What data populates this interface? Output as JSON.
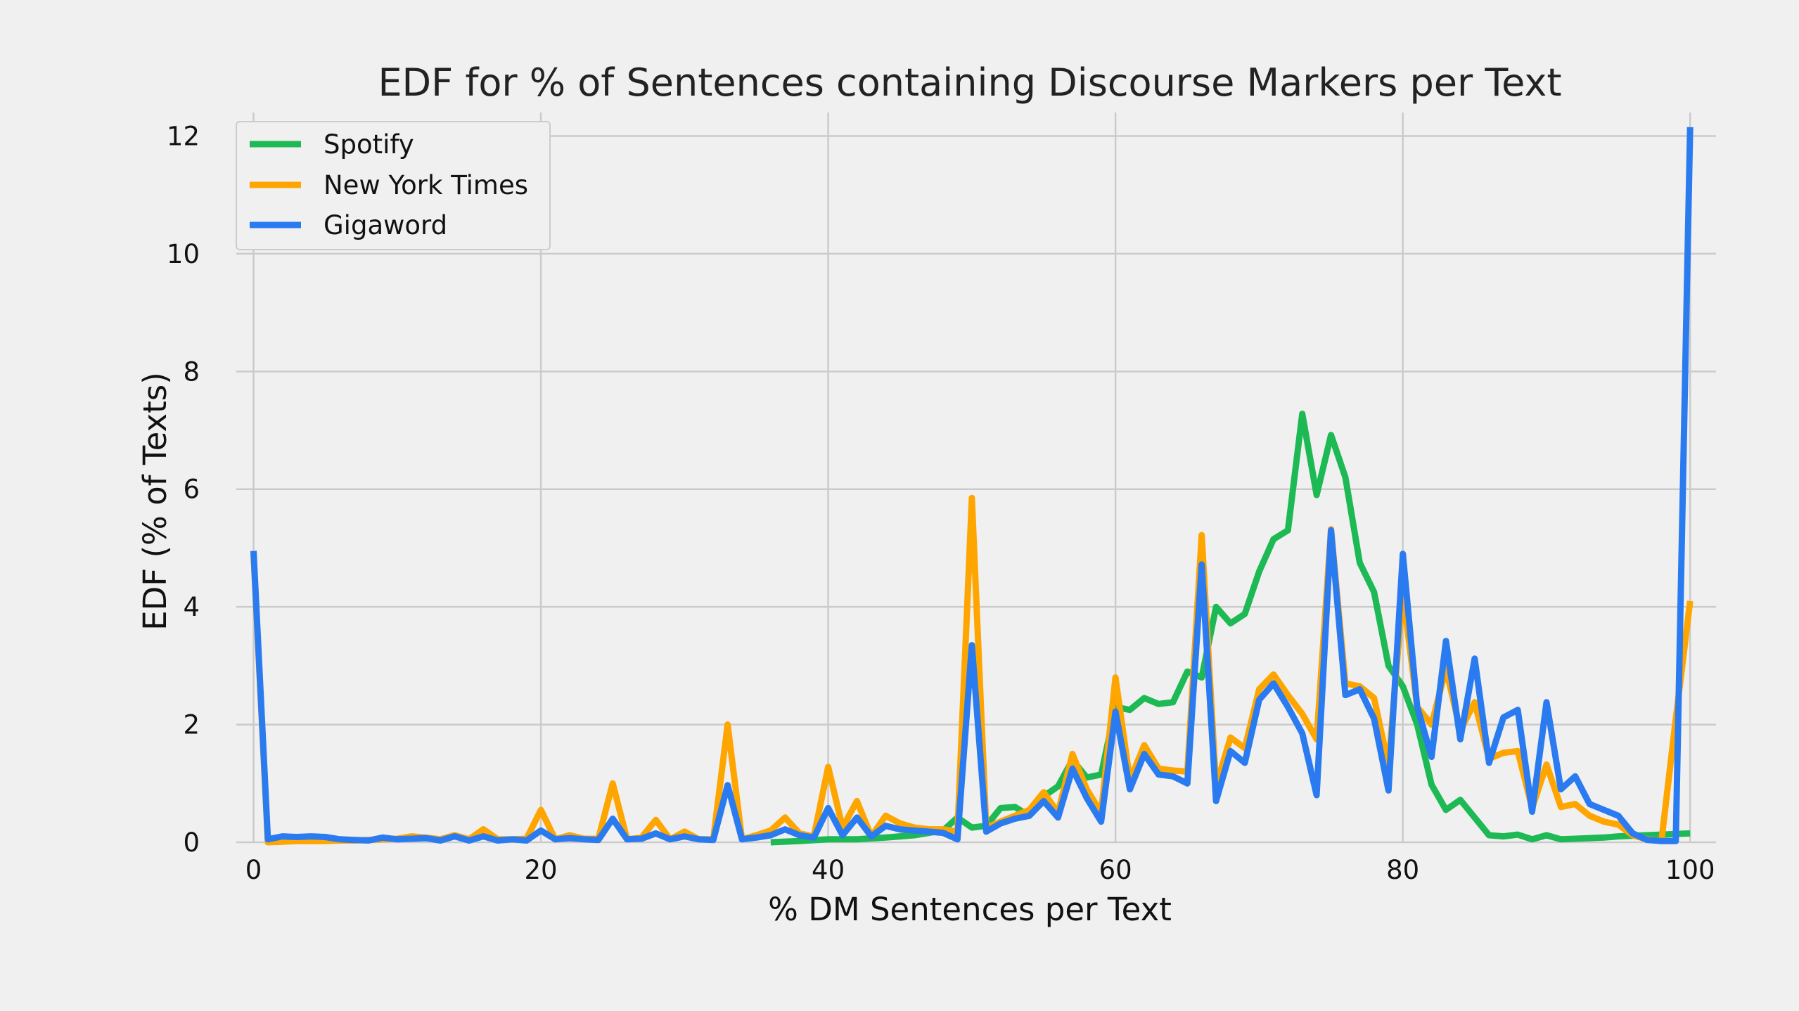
{
  "chart_data": {
    "type": "line",
    "title": "EDF for % of Sentences containing Discourse Markers per Text",
    "xlabel": "% DM Sentences per Text",
    "ylabel": "EDF (% of Texts)",
    "xlim": [
      -1.2,
      101.8
    ],
    "ylim": [
      0,
      12.4
    ],
    "xticks": [
      0,
      20,
      40,
      60,
      80,
      100
    ],
    "yticks": [
      0,
      2,
      4,
      6,
      8,
      10,
      12
    ],
    "grid": true,
    "legend_position": "top-left",
    "series": [
      {
        "name": "Spotify",
        "color": "#1db954",
        "x": [
          36,
          38,
          40,
          42,
          44,
          46,
          48,
          49,
          50,
          51,
          52,
          53,
          54,
          55,
          56,
          57,
          58,
          59,
          60,
          61,
          62,
          63,
          64,
          65,
          66,
          67,
          68,
          69,
          70,
          71,
          72,
          73,
          74,
          75,
          76,
          77,
          78,
          79,
          80,
          81,
          82,
          83,
          84,
          85,
          86,
          87,
          88,
          89,
          90,
          91,
          92,
          93,
          94,
          95,
          96,
          97,
          98,
          99,
          100
        ],
        "values": [
          0.0,
          0.02,
          0.05,
          0.05,
          0.08,
          0.12,
          0.2,
          0.42,
          0.25,
          0.28,
          0.58,
          0.6,
          0.45,
          0.78,
          0.95,
          1.4,
          1.1,
          1.15,
          2.3,
          2.25,
          2.45,
          2.35,
          2.38,
          2.9,
          2.8,
          4.0,
          3.72,
          3.88,
          4.6,
          5.15,
          5.3,
          7.28,
          5.9,
          6.92,
          6.2,
          4.75,
          4.25,
          3.0,
          2.65,
          2.0,
          0.98,
          0.55,
          0.72,
          0.42,
          0.12,
          0.1,
          0.13,
          0.05,
          0.12,
          0.05,
          0.06,
          0.07,
          0.08,
          0.1,
          0.11,
          0.12,
          0.13,
          0.14,
          0.15
        ]
      },
      {
        "name": "New York Times",
        "color": "#ffa500",
        "x": [
          0,
          1,
          2,
          3,
          4,
          5,
          6,
          7,
          8,
          9,
          10,
          11,
          12,
          13,
          14,
          15,
          16,
          17,
          18,
          19,
          20,
          21,
          22,
          23,
          24,
          25,
          26,
          27,
          28,
          29,
          30,
          31,
          32,
          33,
          34,
          35,
          36,
          37,
          38,
          39,
          40,
          41,
          42,
          43,
          44,
          45,
          46,
          47,
          48,
          49,
          50,
          51,
          52,
          53,
          54,
          55,
          56,
          57,
          58,
          59,
          60,
          61,
          62,
          63,
          64,
          65,
          66,
          67,
          68,
          69,
          70,
          71,
          72,
          73,
          74,
          75,
          76,
          77,
          78,
          79,
          80,
          81,
          82,
          83,
          84,
          85,
          86,
          87,
          88,
          89,
          90,
          91,
          92,
          93,
          94,
          95,
          96,
          97,
          98,
          99,
          100
        ],
        "values": [
          4.9,
          0.0,
          0.01,
          0.02,
          0.02,
          0.02,
          0.03,
          0.03,
          0.04,
          0.05,
          0.06,
          0.1,
          0.08,
          0.05,
          0.12,
          0.05,
          0.22,
          0.05,
          0.05,
          0.06,
          0.55,
          0.05,
          0.12,
          0.06,
          0.06,
          1.0,
          0.05,
          0.08,
          0.38,
          0.05,
          0.18,
          0.05,
          0.05,
          2.0,
          0.05,
          0.12,
          0.2,
          0.42,
          0.15,
          0.1,
          1.28,
          0.25,
          0.7,
          0.1,
          0.45,
          0.32,
          0.25,
          0.22,
          0.22,
          0.18,
          5.85,
          0.25,
          0.35,
          0.45,
          0.55,
          0.85,
          0.5,
          1.5,
          0.9,
          0.5,
          2.8,
          1.05,
          1.65,
          1.25,
          1.22,
          1.2,
          5.22,
          0.95,
          1.78,
          1.6,
          2.6,
          2.85,
          2.5,
          2.18,
          1.75,
          5.32,
          2.7,
          2.65,
          2.45,
          1.3,
          4.25,
          2.3,
          2.0,
          2.95,
          1.9,
          2.38,
          1.42,
          1.52,
          1.55,
          0.58,
          1.32,
          0.6,
          0.65,
          0.45,
          0.35,
          0.3,
          0.12,
          0.05,
          0.02,
          2.1,
          4.1
        ]
      },
      {
        "name": "Gigaword",
        "color": "#2b7bf0",
        "x": [
          0,
          1,
          2,
          3,
          4,
          5,
          6,
          7,
          8,
          9,
          10,
          11,
          12,
          13,
          14,
          15,
          16,
          17,
          18,
          19,
          20,
          21,
          22,
          23,
          24,
          25,
          26,
          27,
          28,
          29,
          30,
          31,
          32,
          33,
          34,
          35,
          36,
          37,
          38,
          39,
          40,
          41,
          42,
          43,
          44,
          45,
          46,
          47,
          48,
          49,
          50,
          51,
          52,
          53,
          54,
          55,
          56,
          57,
          58,
          59,
          60,
          61,
          62,
          63,
          64,
          65,
          66,
          67,
          68,
          69,
          70,
          71,
          72,
          73,
          74,
          75,
          76,
          77,
          78,
          79,
          80,
          81,
          82,
          83,
          84,
          85,
          86,
          87,
          88,
          89,
          90,
          91,
          92,
          93,
          94,
          95,
          96,
          97,
          98,
          99,
          100
        ],
        "values": [
          4.95,
          0.05,
          0.1,
          0.09,
          0.1,
          0.09,
          0.05,
          0.04,
          0.03,
          0.08,
          0.05,
          0.06,
          0.07,
          0.03,
          0.1,
          0.03,
          0.1,
          0.03,
          0.05,
          0.03,
          0.2,
          0.05,
          0.07,
          0.05,
          0.04,
          0.4,
          0.05,
          0.06,
          0.15,
          0.05,
          0.1,
          0.05,
          0.04,
          0.97,
          0.05,
          0.08,
          0.12,
          0.22,
          0.12,
          0.08,
          0.58,
          0.12,
          0.42,
          0.1,
          0.28,
          0.22,
          0.2,
          0.18,
          0.16,
          0.05,
          3.35,
          0.18,
          0.32,
          0.4,
          0.45,
          0.7,
          0.42,
          1.25,
          0.75,
          0.35,
          2.22,
          0.9,
          1.5,
          1.15,
          1.12,
          1.0,
          4.72,
          0.7,
          1.55,
          1.35,
          2.42,
          2.7,
          2.3,
          1.85,
          0.8,
          5.3,
          2.5,
          2.6,
          2.1,
          0.88,
          4.9,
          2.3,
          1.45,
          3.42,
          1.75,
          3.12,
          1.35,
          2.12,
          2.25,
          0.52,
          2.38,
          0.9,
          1.12,
          0.65,
          0.55,
          0.45,
          0.15,
          0.04,
          0.02,
          0.02,
          12.15
        ]
      }
    ]
  }
}
